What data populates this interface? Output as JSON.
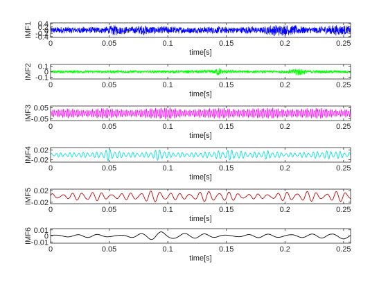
{
  "chart_data": [
    {
      "type": "line",
      "name": "IMF1",
      "ylabel": "IMF1",
      "xlabel": "time[s]",
      "xlim": [
        0,
        0.256
      ],
      "ylim": [
        -0.45,
        0.45
      ],
      "yticks": [
        0.4,
        0.2,
        0,
        -0.2,
        -0.4
      ],
      "ytick_labels": [
        "0.4",
        "0.2",
        "0",
        "-0.2",
        "-0.4"
      ],
      "xticks": [
        0,
        0.05,
        0.1,
        0.15,
        0.2,
        0.25
      ],
      "xtick_labels": [
        "0",
        "0.05",
        "0.1",
        "0.15",
        "0.2",
        "0.25"
      ],
      "color": "#0000ff",
      "grid": false,
      "envelope": {
        "x": [
          0,
          0.01,
          0.02,
          0.03,
          0.04,
          0.05,
          0.055,
          0.06,
          0.07,
          0.08,
          0.09,
          0.1,
          0.11,
          0.12,
          0.13,
          0.14,
          0.15,
          0.16,
          0.17,
          0.18,
          0.19,
          0.2,
          0.205,
          0.21,
          0.22,
          0.23,
          0.24,
          0.25,
          0.256
        ],
        "amplitude": [
          0.2,
          0.22,
          0.2,
          0.22,
          0.2,
          0.24,
          0.38,
          0.26,
          0.22,
          0.34,
          0.24,
          0.26,
          0.22,
          0.2,
          0.22,
          0.24,
          0.22,
          0.2,
          0.24,
          0.2,
          0.38,
          0.36,
          0.32,
          0.3,
          0.22,
          0.24,
          0.34,
          0.32,
          0.24
        ]
      }
    },
    {
      "type": "line",
      "name": "IMF2",
      "ylabel": "IMF2",
      "xlabel": "time[s]",
      "xlim": [
        0,
        0.256
      ],
      "ylim": [
        -0.13,
        0.13
      ],
      "yticks": [
        0.1,
        0,
        -0.1
      ],
      "ytick_labels": [
        "0.1",
        "0",
        "-0.1"
      ],
      "xticks": [
        0,
        0.05,
        0.1,
        0.15,
        0.2,
        0.25
      ],
      "xtick_labels": [
        "0",
        "0.05",
        "0.1",
        "0.15",
        "0.2",
        "0.25"
      ],
      "color": "#00ff00",
      "grid": false,
      "envelope": {
        "x": [
          0,
          0.02,
          0.04,
          0.06,
          0.08,
          0.1,
          0.12,
          0.14,
          0.143,
          0.146,
          0.16,
          0.18,
          0.2,
          0.207,
          0.21,
          0.22,
          0.24,
          0.256
        ],
        "amplitude": [
          0.025,
          0.03,
          0.025,
          0.03,
          0.025,
          0.03,
          0.03,
          0.04,
          0.1,
          0.04,
          0.03,
          0.025,
          0.03,
          0.05,
          0.09,
          0.03,
          0.03,
          0.025
        ]
      }
    },
    {
      "type": "line",
      "name": "IMF3",
      "ylabel": "IMF3",
      "xlabel": "time[s]",
      "xlim": [
        0,
        0.256
      ],
      "ylim": [
        -0.065,
        0.065
      ],
      "yticks": [
        0.05,
        -0.05
      ],
      "ytick_labels": [
        "0.05",
        "-0.05"
      ],
      "xticks": [
        0,
        0.05,
        0.1,
        0.15,
        0.2,
        0.25
      ],
      "xtick_labels": [
        "0",
        "0.05",
        "0.1",
        "0.15",
        "0.2",
        "0.25"
      ],
      "color": "#ff00ff",
      "grid": false,
      "envelope": {
        "x": [
          0,
          0.015,
          0.03,
          0.045,
          0.055,
          0.07,
          0.085,
          0.1,
          0.115,
          0.13,
          0.145,
          0.16,
          0.175,
          0.19,
          0.2,
          0.215,
          0.23,
          0.245,
          0.256
        ],
        "amplitude": [
          0.03,
          0.045,
          0.03,
          0.05,
          0.04,
          0.03,
          0.045,
          0.055,
          0.03,
          0.04,
          0.05,
          0.035,
          0.045,
          0.05,
          0.035,
          0.04,
          0.05,
          0.03,
          0.04
        ]
      }
    },
    {
      "type": "line",
      "name": "IMF4",
      "ylabel": "IMF4",
      "xlabel": "time[s]",
      "xlim": [
        0,
        0.256
      ],
      "ylim": [
        -0.03,
        0.03
      ],
      "yticks": [
        0.02,
        -0.02
      ],
      "ytick_labels": [
        "0.02",
        "-0.02"
      ],
      "xticks": [
        0,
        0.05,
        0.1,
        0.15,
        0.2,
        0.25
      ],
      "xtick_labels": [
        "0",
        "0.05",
        "0.1",
        "0.15",
        "0.2",
        "0.25"
      ],
      "color": "#00e0e0",
      "grid": false,
      "envelope": {
        "x": [
          0,
          0.02,
          0.04,
          0.05,
          0.06,
          0.08,
          0.095,
          0.1,
          0.12,
          0.14,
          0.155,
          0.17,
          0.185,
          0.2,
          0.22,
          0.24,
          0.256
        ],
        "amplitude": [
          0.008,
          0.01,
          0.012,
          0.025,
          0.012,
          0.01,
          0.026,
          0.012,
          0.009,
          0.015,
          0.022,
          0.01,
          0.018,
          0.008,
          0.012,
          0.018,
          0.01
        ]
      }
    },
    {
      "type": "line",
      "name": "IMF5",
      "ylabel": "IMF5",
      "xlabel": "time[s]",
      "xlim": [
        0,
        0.256
      ],
      "ylim": [
        -0.025,
        0.025
      ],
      "yticks": [
        0.02,
        -0.02
      ],
      "ytick_labels": [
        "0.02",
        "-0.02"
      ],
      "xticks": [
        0,
        0.05,
        0.1,
        0.15,
        0.2,
        0.25
      ],
      "xtick_labels": [
        "0",
        "0.05",
        "0.1",
        "0.15",
        "0.2",
        "0.25"
      ],
      "color": "#c00000",
      "grid": false,
      "envelope": {
        "x": [
          0,
          0.015,
          0.03,
          0.045,
          0.06,
          0.08,
          0.095,
          0.11,
          0.125,
          0.14,
          0.16,
          0.18,
          0.2,
          0.22,
          0.235,
          0.25,
          0.256
        ],
        "amplitude": [
          0.012,
          0.008,
          0.02,
          0.012,
          0.01,
          0.018,
          0.02,
          0.01,
          0.015,
          0.02,
          0.012,
          0.008,
          0.015,
          0.018,
          0.012,
          0.02,
          0.015
        ]
      }
    },
    {
      "type": "line",
      "name": "IMF6",
      "ylabel": "IMF6",
      "xlabel": "time[s]",
      "xlim": [
        0,
        0.256
      ],
      "ylim": [
        -0.012,
        0.012
      ],
      "yticks": [
        0.01,
        0,
        -0.01
      ],
      "ytick_labels": [
        "0.01",
        "0",
        "-0.01"
      ],
      "xticks": [
        0,
        0.05,
        0.1,
        0.15,
        0.2,
        0.25
      ],
      "xtick_labels": [
        "0",
        "0.05",
        "0.1",
        "0.15",
        "0.2",
        "0.25"
      ],
      "color": "#000000",
      "grid": false,
      "envelope": {
        "x": [
          0,
          0.02,
          0.04,
          0.06,
          0.08,
          0.095,
          0.105,
          0.12,
          0.14,
          0.16,
          0.18,
          0.2,
          0.22,
          0.24,
          0.25,
          0.256
        ],
        "amplitude": [
          0.003,
          0.002,
          0.003,
          0.002,
          0.004,
          0.01,
          0.008,
          0.004,
          0.003,
          0.002,
          0.003,
          0.004,
          0.003,
          0.004,
          0.01,
          0.008
        ]
      }
    }
  ]
}
